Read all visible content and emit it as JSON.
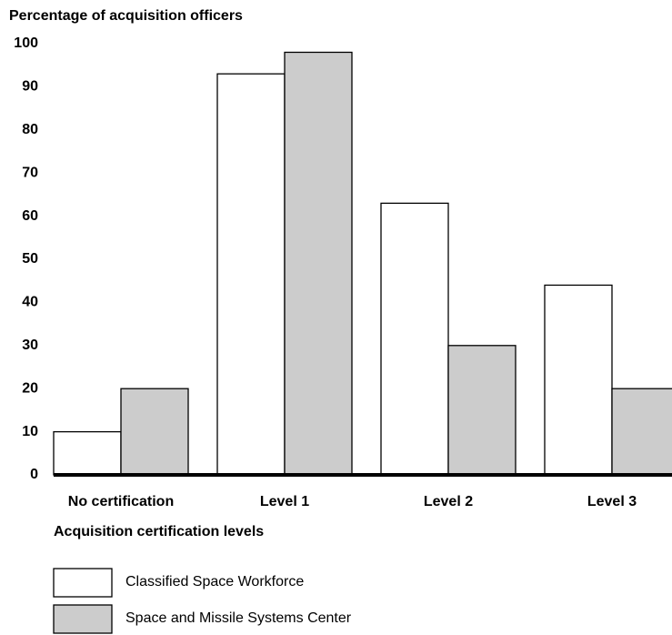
{
  "chart_data": {
    "type": "bar",
    "title": "Percentage of acquisition officers",
    "x_label": "Acquisition certification levels",
    "categories": [
      "No certification",
      "Level 1",
      "Level 2",
      "Level 3"
    ],
    "series": [
      {
        "name": "Classified Space Workforce",
        "color": "#ffffff",
        "values": [
          10,
          93,
          63,
          44
        ]
      },
      {
        "name": "Space and Missile Systems Center",
        "color": "#cccccc",
        "values": [
          20,
          98,
          30,
          20
        ]
      }
    ],
    "ylim": [
      0,
      100
    ],
    "yticks": [
      0,
      10,
      20,
      30,
      40,
      50,
      60,
      70,
      80,
      90,
      100
    ],
    "grid": false,
    "legend": "bottom-left"
  }
}
